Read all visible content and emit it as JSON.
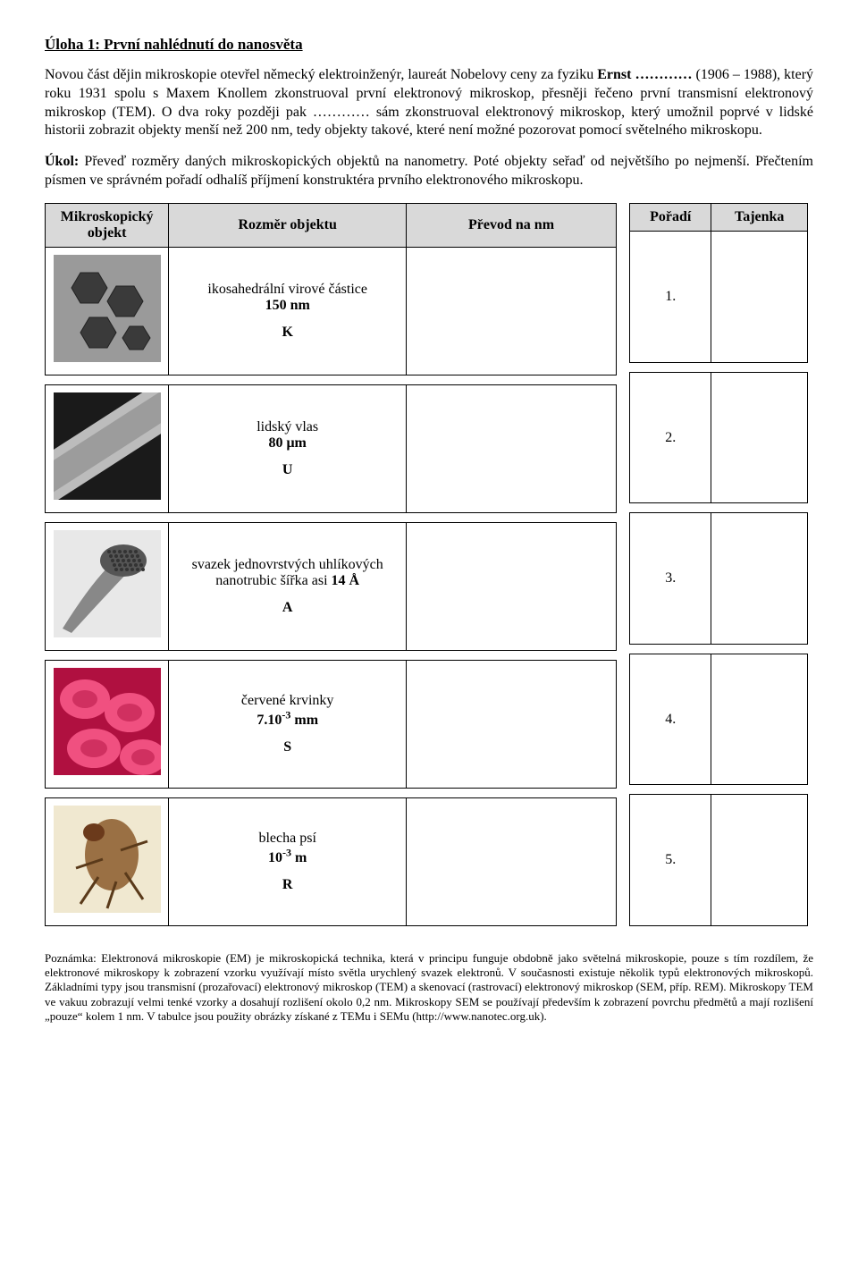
{
  "title": "Úloha 1: První nahlédnutí do nanosvěta",
  "para1_a": "Novou část dějin mikroskopie otevřel německý elektroinženýr, laureát Nobelovy ceny za fyziku ",
  "para1_b": "Ernst …………",
  "para1_c": " (1906 – 1988), který roku 1931 spolu s Maxem Knollem zkonstruoval první elektronový mikroskop, přesněji řečeno první transmisní elektronový mikroskop (TEM). O dva roky později pak ………… sám zkonstruoval elektronový mikroskop, který umožnil poprvé v lidské historii zobrazit objekty menší než 200 nm, tedy objekty takové, které není možné pozorovat pomocí světelného mikroskopu.",
  "para2_a": "Úkol:",
  "para2_b": " Převeď rozměry daných mikroskopických objektů na nanometry. Poté objekty seřaď od největšího po nejmenší. Přečtením písmen ve správném pořadí odhalíš příjmení konstruktéra prvního elektronového mikroskopu.",
  "main_headers": {
    "c1": "Mikroskopický objekt",
    "c2": "Rozměr objektu",
    "c3": "Převod na nm"
  },
  "side_headers": {
    "c1": "Pořadí",
    "c2": "Tajenka"
  },
  "rows": [
    {
      "name": "ikosahedrální virové částice",
      "size": "150 nm",
      "letter": "K",
      "order": "1.",
      "img": {
        "bg": "#9a9a9a",
        "shapes": "hex"
      }
    },
    {
      "name": "lidský vlas",
      "size": "80 μm",
      "letter": "U",
      "order": "2.",
      "img": {
        "bg": "#2a2a2a",
        "shapes": "hair"
      }
    },
    {
      "name": "svazek jednovrstvých uhlíkových nanotrubic šířka asi",
      "size": "14 Å",
      "letter": "A",
      "order": "3.",
      "img": {
        "bg": "#c8c8c8",
        "shapes": "tubes"
      }
    },
    {
      "name": "červené krvinky",
      "size_html": "7.10<sup>-3</sup> mm",
      "letter": "S",
      "order": "4.",
      "img": {
        "bg": "#d6184f",
        "shapes": "rbc"
      }
    },
    {
      "name": "blecha psí",
      "size_html": "10<sup>-3</sup> m",
      "letter": "R",
      "order": "5.",
      "img": {
        "bg": "#e8d8b0",
        "shapes": "flea"
      }
    }
  ],
  "note": "Poznámka: Elektronová mikroskopie (EM) je mikroskopická technika, která v principu funguje obdobně jako světelná mikroskopie, pouze s tím rozdílem, že elektronové mikroskopy k zobrazení vzorku využívají místo světla urychlený svazek elektronů. V současnosti existuje několik typů elektronových mikroskopů. Základními typy jsou transmisní (prozařovací) elektronový mikroskop (TEM) a skenovací (rastrovací) elektronový mikroskop (SEM, příp. REM). Mikroskopy TEM ve vakuu zobrazují velmi tenké vzorky a dosahují rozlišení okolo 0,2 nm. Mikroskopy SEM se používají především k zobrazení povrchu předmětů a mají rozlišení „pouze“ kolem 1 nm. V tabulce jsou použity obrázky získané z TEMu i SEMu (http://www.nanotec.org.uk)."
}
